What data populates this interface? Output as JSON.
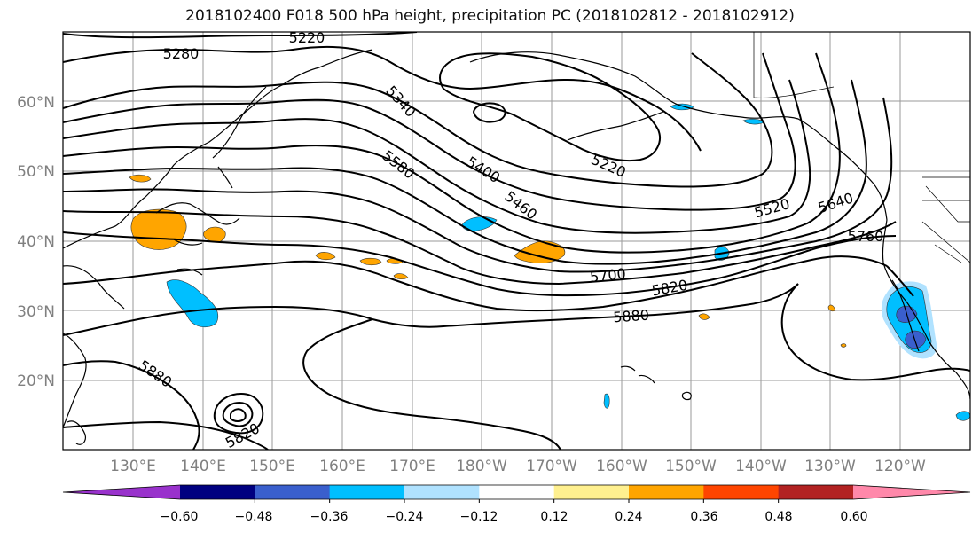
{
  "title": "2018102400 F018 500 hPa height, precipitation PC (2018102812 - 2018102912)",
  "lat_labels": [
    "60°N",
    "50°N",
    "40°N",
    "30°N",
    "20°N"
  ],
  "lon_labels": [
    "130°E",
    "140°E",
    "150°E",
    "160°E",
    "170°E",
    "180°W",
    "170°W",
    "160°W",
    "150°W",
    "140°W",
    "130°W",
    "120°W"
  ],
  "contour_labels": [
    "5220",
    "5280",
    "5340",
    "5580",
    "5400",
    "5460",
    "5220",
    "5520",
    "5640",
    "5760",
    "5700",
    "5820",
    "5880",
    "5880",
    "5820"
  ],
  "colorbar": {
    "colors": [
      "#9932cc",
      "#000080",
      "#3a5fcd",
      "#00bfff",
      "#b0e2ff",
      "#ffffff",
      "#fff08f",
      "#ffa500",
      "#ff4500",
      "#b22222",
      "#ff88aa"
    ],
    "labels": [
      "−0.60",
      "−0.48",
      "−0.36",
      "−0.24",
      "−0.12",
      "0.12",
      "0.24",
      "0.36",
      "0.48",
      "0.60"
    ]
  },
  "precip_colors": {
    "positive_light": "#fff08f",
    "positive": "#ffa500",
    "negative_light": "#b0e2ff",
    "negative": "#00bfff",
    "negative_strong": "#3a5fcd"
  }
}
